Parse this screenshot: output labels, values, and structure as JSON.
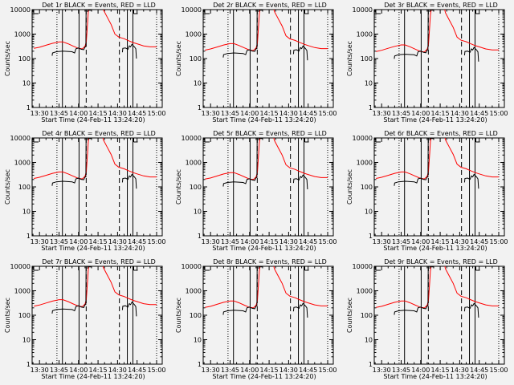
{
  "chart_data": {
    "type": "line",
    "ylabel": "Counts/sec",
    "xlabel": "Start Time (24-Feb-11 13:24:20)",
    "yscale": "log",
    "ylim": [
      1,
      10000
    ],
    "xlim_minutes_after_13h": [
      24.33,
      124.33
    ],
    "xticks": [
      30,
      45,
      60,
      75,
      90,
      105,
      120
    ],
    "xtick_labels": [
      "13:30",
      "13:45",
      "14:00",
      "14:15",
      "14:30",
      "14:45",
      "15:00"
    ],
    "yticks": [
      1,
      10,
      100,
      1000,
      10000
    ],
    "ytick_labels": [
      "1",
      "10",
      "100",
      "1000",
      "10000"
    ],
    "colors": {
      "events": "#000000",
      "lld": "#ff0000",
      "axes": "#000000"
    },
    "legend": "in title",
    "x_units": "minutes after 13:00",
    "red_lld": [
      [
        25.7,
        260
      ],
      [
        30,
        290
      ],
      [
        35,
        350
      ],
      [
        40,
        420
      ],
      [
        45,
        480
      ],
      [
        48,
        480
      ],
      [
        52,
        400
      ],
      [
        56,
        320
      ],
      [
        60,
        260
      ],
      [
        63,
        250
      ],
      [
        65,
        320
      ],
      [
        66,
        500
      ],
      [
        67,
        3000
      ],
      [
        67.5,
        8000
      ],
      [
        68,
        12000
      ],
      [
        70,
        30000
      ],
      [
        77,
        30000
      ],
      [
        79,
        10000
      ],
      [
        82,
        5000
      ],
      [
        85,
        2500
      ],
      [
        88,
        1000
      ],
      [
        91,
        750
      ],
      [
        95,
        650
      ],
      [
        98,
        550
      ],
      [
        102,
        450
      ],
      [
        105,
        400
      ],
      [
        110,
        330
      ],
      [
        115,
        300
      ],
      [
        120,
        300
      ]
    ],
    "black_events": [
      [
        [
          39.7,
          130
        ],
        [
          40,
          170
        ],
        [
          43,
          190
        ],
        [
          48,
          200
        ],
        [
          55,
          190
        ],
        [
          57,
          170
        ],
        [
          58,
          250
        ],
        [
          60,
          270
        ],
        [
          62,
          240
        ],
        [
          64,
          230
        ],
        [
          65,
          300
        ],
        [
          65.6,
          300
        ],
        [
          65.8,
          10000
        ]
      ],
      [
        [
          67,
          8000
        ],
        [
          67,
          9500
        ],
        [
          70,
          9500
        ],
        [
          70,
          11000
        ]
      ],
      [
        [
          93.7,
          180
        ],
        [
          94,
          260
        ],
        [
          96,
          270
        ],
        [
          98,
          240
        ],
        [
          99,
          330
        ],
        [
          100,
          300
        ],
        [
          101,
          380
        ],
        [
          103,
          300
        ],
        [
          104,
          250
        ],
        [
          104.5,
          100
        ]
      ]
    ],
    "vertical_markers": [
      {
        "t": 43.4,
        "style": "dotted"
      },
      {
        "t": 47.6,
        "style": "solid"
      },
      {
        "t": 60.4,
        "style": "solid"
      },
      {
        "t": 65.9,
        "style": "dashed"
      },
      {
        "t": 91.4,
        "style": "dashed"
      },
      {
        "t": 97.5,
        "style": "solid"
      },
      {
        "t": 101.8,
        "style": "solid"
      },
      {
        "t": 120,
        "style": "dotted"
      }
    ],
    "panels": [
      {
        "title": "Det 1r BLACK = Events, RED = LLD",
        "scale": 1.0
      },
      {
        "title": "Det 2r BLACK = Events, RED = LLD",
        "scale": 0.85
      },
      {
        "title": "Det 3r BLACK = Events, RED = LLD",
        "scale": 0.75
      },
      {
        "title": "Det 4r BLACK = Events, RED = LLD",
        "scale": 0.85
      },
      {
        "title": "Det 5r BLACK = Events, RED = LLD",
        "scale": 0.8
      },
      {
        "title": "Det 6r BLACK = Events, RED = LLD",
        "scale": 0.85
      },
      {
        "title": "Det 7r BLACK = Events, RED = LLD",
        "scale": 0.9
      },
      {
        "title": "Det 8r BLACK = Events, RED = LLD",
        "scale": 0.8
      },
      {
        "title": "Det 9r BLACK = Events, RED = LLD",
        "scale": 0.8
      }
    ]
  }
}
